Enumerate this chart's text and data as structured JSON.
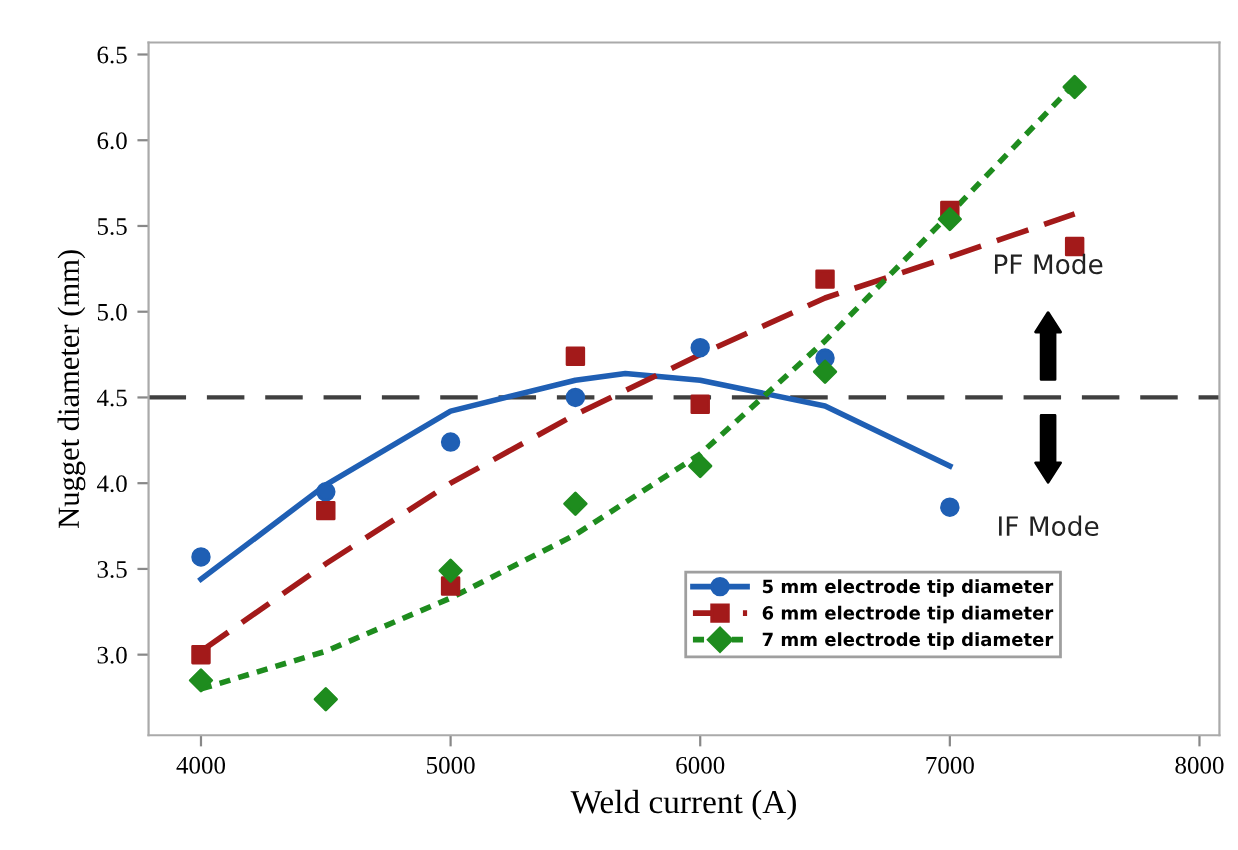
{
  "chart_data": {
    "type": "scatter",
    "xlabel": "Weld current (A)",
    "ylabel": "Nugget diameter (mm)",
    "xlim": [
      3790,
      8080
    ],
    "ylim": [
      2.53,
      6.57
    ],
    "xticks": [
      4000,
      5000,
      6000,
      7000,
      8000
    ],
    "yticks": [
      {
        "value": 3,
        "label": "3.0"
      },
      3.5,
      {
        "value": 4,
        "label": "4.0"
      },
      4.5,
      {
        "value": 5,
        "label": "5.0"
      },
      5.5,
      {
        "value": 6,
        "label": "6.0"
      },
      6.5
    ],
    "grid": false,
    "legend": "bottom right",
    "series": [
      {
        "name": "5 mm electrode tip diameter",
        "marker": "circle",
        "line_style": "solid",
        "color": "#1f5fb4",
        "x": [
          4000,
          4500,
          5000,
          5500,
          6000,
          6500,
          7000
        ],
        "values": [
          3.57,
          3.95,
          4.24,
          4.5,
          4.79,
          4.73,
          3.86
        ]
      },
      {
        "name": "6 mm electrode tip diameter",
        "marker": "square",
        "line_style": "dashed",
        "color": "#a31a1a",
        "x": [
          4000,
          4500,
          5000,
          5500,
          6000,
          6500,
          7000,
          7500
        ],
        "values": [
          3.0,
          3.84,
          3.4,
          4.74,
          4.46,
          5.19,
          5.59,
          5.38
        ]
      },
      {
        "name": "7 mm electrode tip diameter",
        "marker": "diamond",
        "line_style": "dotted",
        "color": "#1e8c1e",
        "x": [
          4000,
          4500,
          5000,
          5500,
          6000,
          6500,
          7000,
          7500
        ],
        "values": [
          2.85,
          2.74,
          3.49,
          3.88,
          4.1,
          4.65,
          5.54,
          6.31
        ]
      },
      {
        "type": "line",
        "line_style": "solid",
        "color": "#1f5fb4",
        "x": [
          4000,
          4500,
          5000,
          5500,
          5700,
          6000,
          6500,
          7000
        ],
        "values": [
          3.44,
          3.99,
          4.42,
          4.6,
          4.64,
          4.6,
          4.45,
          4.1
        ]
      },
      {
        "type": "line",
        "line_style": "dashed",
        "color": "#a31a1a",
        "x": [
          4000,
          4500,
          5000,
          5500,
          6000,
          6500,
          7000,
          7500
        ],
        "values": [
          3.02,
          3.53,
          4.0,
          4.4,
          4.75,
          5.08,
          5.32,
          5.57
        ]
      },
      {
        "type": "line",
        "line_style": "dotted",
        "color": "#1e8c1e",
        "x": [
          4000,
          4500,
          5000,
          5500,
          6000,
          6250,
          6500,
          7000,
          7500
        ],
        "values": [
          2.8,
          3.02,
          3.33,
          3.7,
          4.17,
          4.5,
          4.83,
          5.57,
          6.33
        ]
      }
    ],
    "ref_lines": [
      {
        "axis": "y",
        "value": 4.5,
        "color": "#404040",
        "line_style": "dashed"
      }
    ],
    "annotations": [
      "PF Mode",
      "IF Mode"
    ]
  }
}
